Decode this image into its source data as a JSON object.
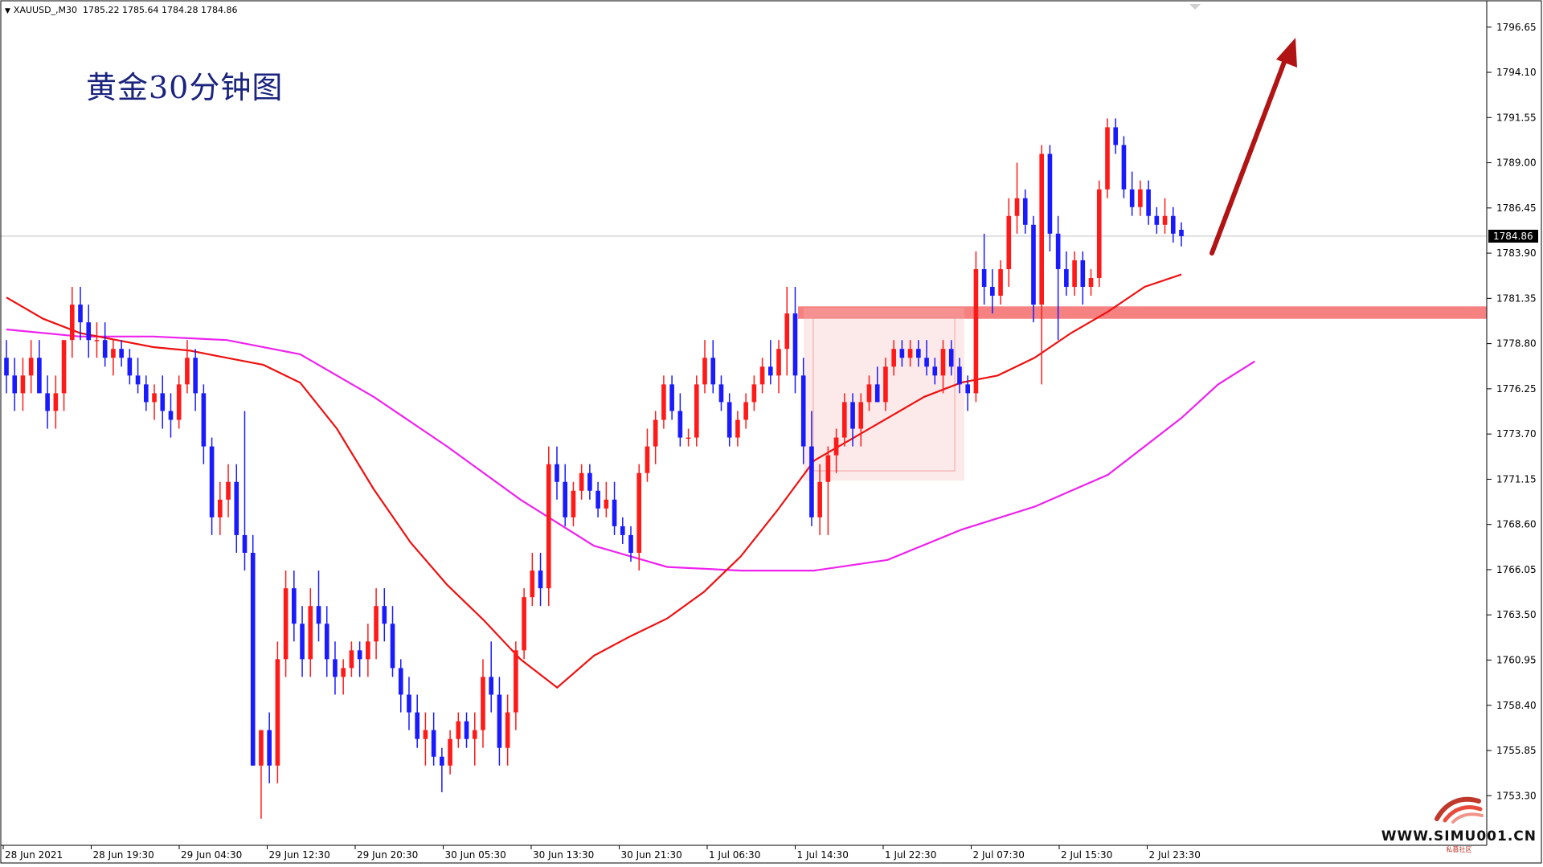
{
  "header": {
    "symbol_line": "XAUUSD_,M30  1785.22 1785.64 1784.28 1784.86"
  },
  "annotation_title": "黄金30分钟图",
  "brand": {
    "site": "WWW.SIMU001.CN",
    "sub": "私募社区"
  },
  "colors": {
    "bull": "#ff1a1a",
    "bear": "#1a1aff",
    "ma_fast": "#ee1111",
    "ma_slow": "#ee22ee",
    "zone": "#f36b6b",
    "arrow": "#b01414"
  },
  "chart_data": {
    "type": "candlestick",
    "symbol": "XAUUSD_",
    "timeframe": "M30",
    "last_price": "1784.86",
    "ylim": [
      1751.5,
      1797.5
    ],
    "y_ticks": [
      "1796.65",
      "1794.10",
      "1791.55",
      "1789.00",
      "1786.45",
      "1783.90",
      "1781.35",
      "1778.80",
      "1776.25",
      "1773.70",
      "1771.15",
      "1768.60",
      "1766.05",
      "1763.50",
      "1760.95",
      "1758.40",
      "1755.85",
      "1753.30"
    ],
    "x_labels": [
      "28 Jun 2021",
      "28 Jun 19:30",
      "29 Jun 04:30",
      "29 Jun 12:30",
      "29 Jun 20:30",
      "30 Jun 05:30",
      "30 Jun 13:30",
      "30 Jun 21:30",
      "1 Jul 06:30",
      "1 Jul 14:30",
      "1 Jul 22:30",
      "2 Jul 07:30",
      "2 Jul 15:30",
      "2 Jul 23:30"
    ],
    "resistance_zone": [
      1780.2,
      1780.9
    ],
    "candles": [
      [
        1778,
        1779,
        1776,
        1777
      ],
      [
        1777,
        1778,
        1775,
        1776
      ],
      [
        1776,
        1778,
        1775,
        1777
      ],
      [
        1777,
        1779,
        1776,
        1778
      ],
      [
        1778,
        1779,
        1776,
        1776
      ],
      [
        1776,
        1777,
        1774,
        1775
      ],
      [
        1775,
        1777,
        1774,
        1776
      ],
      [
        1776,
        1779,
        1775,
        1779
      ],
      [
        1779,
        1782,
        1778,
        1781
      ],
      [
        1781,
        1782,
        1779,
        1780
      ],
      [
        1780,
        1781,
        1778,
        1779
      ],
      [
        1779,
        1780,
        1778,
        1779
      ],
      [
        1779,
        1780,
        1777.5,
        1778
      ],
      [
        1778,
        1779,
        1777,
        1778.5
      ],
      [
        1778.5,
        1779,
        1777.5,
        1778
      ],
      [
        1778,
        1778.5,
        1776.5,
        1777
      ],
      [
        1777,
        1778,
        1776,
        1776.5
      ],
      [
        1776.5,
        1777,
        1775,
        1775.5
      ],
      [
        1775.5,
        1776.5,
        1774.5,
        1776
      ],
      [
        1776,
        1777,
        1774,
        1775
      ],
      [
        1775,
        1776,
        1773.5,
        1774.5
      ],
      [
        1774.5,
        1777,
        1774,
        1776.5
      ],
      [
        1776.5,
        1779,
        1776,
        1778
      ],
      [
        1778,
        1778.5,
        1775,
        1776
      ],
      [
        1776,
        1776.5,
        1772,
        1773
      ],
      [
        1773,
        1773.5,
        1768,
        1769
      ],
      [
        1769,
        1771,
        1768,
        1770
      ],
      [
        1770,
        1772,
        1769,
        1771
      ],
      [
        1771,
        1772,
        1767,
        1768
      ],
      [
        1768,
        1775,
        1766,
        1767
      ],
      [
        1767,
        1768,
        1755,
        1755
      ],
      [
        1755,
        1757,
        1752,
        1757
      ],
      [
        1757,
        1758,
        1754,
        1755
      ],
      [
        1755,
        1762,
        1754,
        1761
      ],
      [
        1761,
        1766,
        1760,
        1765
      ],
      [
        1765,
        1766,
        1762,
        1763
      ],
      [
        1763,
        1764,
        1760,
        1761
      ],
      [
        1761,
        1765,
        1760,
        1764
      ],
      [
        1764,
        1766,
        1762,
        1763
      ],
      [
        1763,
        1764,
        1760,
        1761
      ],
      [
        1761,
        1762,
        1759,
        1760
      ],
      [
        1760,
        1761,
        1759,
        1760.5
      ],
      [
        1760.5,
        1762,
        1760,
        1761.5
      ],
      [
        1761.5,
        1762,
        1760,
        1761
      ],
      [
        1761,
        1763,
        1760,
        1762
      ],
      [
        1762,
        1765,
        1761,
        1764
      ],
      [
        1764,
        1765,
        1762,
        1763
      ],
      [
        1763,
        1764,
        1760,
        1760.5
      ],
      [
        1760.5,
        1761,
        1758,
        1759
      ],
      [
        1759,
        1760,
        1757,
        1758
      ],
      [
        1758,
        1759,
        1756,
        1756.5
      ],
      [
        1756.5,
        1758,
        1755,
        1757
      ],
      [
        1757,
        1758,
        1755,
        1755.5
      ],
      [
        1755.5,
        1756,
        1753.5,
        1755
      ],
      [
        1755,
        1757,
        1754.5,
        1756.5
      ],
      [
        1756.5,
        1758,
        1756,
        1757.5
      ],
      [
        1757.5,
        1758,
        1756,
        1756.5
      ],
      [
        1756.5,
        1758,
        1755,
        1757
      ],
      [
        1757,
        1761,
        1756,
        1760
      ],
      [
        1760,
        1762,
        1758,
        1759
      ],
      [
        1759,
        1760,
        1755,
        1756
      ],
      [
        1756,
        1759,
        1755,
        1758
      ],
      [
        1758,
        1762,
        1757,
        1761.5
      ],
      [
        1761.5,
        1765,
        1761,
        1764.5
      ],
      [
        1764.5,
        1767,
        1764,
        1766
      ],
      [
        1766,
        1767,
        1764,
        1765
      ],
      [
        1765,
        1773,
        1764,
        1772
      ],
      [
        1772,
        1773,
        1770,
        1771
      ],
      [
        1771,
        1772,
        1768.5,
        1769
      ],
      [
        1769,
        1771,
        1768.5,
        1770.5
      ],
      [
        1770.5,
        1772,
        1770,
        1771.5
      ],
      [
        1771.5,
        1772,
        1770,
        1770.5
      ],
      [
        1770.5,
        1771,
        1769,
        1769.5
      ],
      [
        1769.5,
        1771,
        1769,
        1770
      ],
      [
        1770,
        1771,
        1768,
        1768.5
      ],
      [
        1768.5,
        1769,
        1767.5,
        1768
      ],
      [
        1768,
        1768.5,
        1766.5,
        1767
      ],
      [
        1767,
        1772,
        1766,
        1771.5
      ],
      [
        1771.5,
        1774,
        1771,
        1773
      ],
      [
        1773,
        1775,
        1772,
        1774.5
      ],
      [
        1774.5,
        1777,
        1774,
        1776.5
      ],
      [
        1776.5,
        1777,
        1774.5,
        1775
      ],
      [
        1775,
        1776,
        1773,
        1773.5
      ],
      [
        1773.5,
        1774,
        1773,
        1773.5
      ],
      [
        1773.5,
        1777,
        1773,
        1776.5
      ],
      [
        1776.5,
        1779,
        1776,
        1778
      ],
      [
        1778,
        1779,
        1776,
        1776.5
      ],
      [
        1776.5,
        1777,
        1775,
        1775.5
      ],
      [
        1775.5,
        1776,
        1773,
        1773.5
      ],
      [
        1773.5,
        1775,
        1773,
        1774.5
      ],
      [
        1774.5,
        1776,
        1774,
        1775.5
      ],
      [
        1775.5,
        1777,
        1775,
        1776.5
      ],
      [
        1776.5,
        1778,
        1776,
        1777.5
      ],
      [
        1777.5,
        1779,
        1776.5,
        1777
      ],
      [
        1777,
        1779,
        1776,
        1778.5
      ],
      [
        1778.5,
        1782,
        1777,
        1780.5
      ],
      [
        1780.5,
        1782,
        1776,
        1777
      ],
      [
        1777,
        1778,
        1772,
        1773
      ],
      [
        1773,
        1775,
        1768.5,
        1769
      ],
      [
        1769,
        1772,
        1768,
        1771
      ],
      [
        1771,
        1773,
        1768,
        1772.5
      ],
      [
        1772.5,
        1774,
        1771.5,
        1773.5
      ],
      [
        1773.5,
        1776,
        1773,
        1775.5
      ],
      [
        1775.5,
        1776,
        1773,
        1774
      ],
      [
        1774,
        1776,
        1773,
        1775.5
      ],
      [
        1775.5,
        1777,
        1775,
        1776.5
      ],
      [
        1776.5,
        1777.5,
        1775.5,
        1775.5
      ],
      [
        1775.5,
        1778,
        1775,
        1777.5
      ],
      [
        1777.5,
        1779,
        1777,
        1778.5
      ],
      [
        1778.5,
        1779,
        1777.5,
        1778
      ],
      [
        1778,
        1779,
        1777.5,
        1778.5
      ],
      [
        1778.5,
        1779,
        1777.5,
        1778
      ],
      [
        1778,
        1779,
        1777,
        1777.5
      ],
      [
        1777.5,
        1778,
        1776.5,
        1777
      ],
      [
        1777,
        1779,
        1776,
        1778.5
      ],
      [
        1778.5,
        1779,
        1777,
        1777.5
      ],
      [
        1777.5,
        1778,
        1776,
        1776.5
      ],
      [
        1776.5,
        1777,
        1775,
        1776
      ],
      [
        1776,
        1784,
        1775.5,
        1783
      ],
      [
        1783,
        1785,
        1781,
        1782
      ],
      [
        1782,
        1783,
        1780.5,
        1781.5
      ],
      [
        1781.5,
        1783.5,
        1781,
        1783
      ],
      [
        1783,
        1787,
        1782,
        1786
      ],
      [
        1786,
        1789,
        1785,
        1787
      ],
      [
        1787,
        1787.5,
        1785,
        1785.5
      ],
      [
        1785.5,
        1786,
        1780,
        1781
      ],
      [
        1781,
        1790,
        1776.5,
        1789.5
      ],
      [
        1789.5,
        1790,
        1784,
        1785
      ],
      [
        1785,
        1786,
        1779,
        1783
      ],
      [
        1783,
        1784,
        1781.5,
        1782
      ],
      [
        1782,
        1784,
        1781.5,
        1783.5
      ],
      [
        1783.5,
        1784,
        1781,
        1782
      ],
      [
        1782,
        1783,
        1781.5,
        1782.5
      ],
      [
        1782.5,
        1788,
        1782,
        1787.5
      ],
      [
        1787.5,
        1791.5,
        1787,
        1791
      ],
      [
        1791,
        1791.5,
        1789.5,
        1790
      ],
      [
        1790,
        1790.5,
        1787,
        1787.5
      ],
      [
        1787.5,
        1788.5,
        1786,
        1786.5
      ],
      [
        1786.5,
        1788,
        1786,
        1787.5
      ],
      [
        1787.5,
        1788,
        1785.5,
        1786
      ],
      [
        1786,
        1786.5,
        1785,
        1785.5
      ],
      [
        1785.5,
        1787,
        1785,
        1786
      ],
      [
        1786,
        1786.5,
        1784.5,
        1785
      ],
      [
        1785.22,
        1785.64,
        1784.28,
        1784.86
      ]
    ],
    "ma_fast": [
      [
        0,
        1781.4
      ],
      [
        40,
        1780.2
      ],
      [
        80,
        1779.4
      ],
      [
        120,
        1779.0
      ],
      [
        160,
        1778.6
      ],
      [
        200,
        1778.4
      ],
      [
        240,
        1778.0
      ],
      [
        280,
        1777.6
      ],
      [
        320,
        1776.6
      ],
      [
        360,
        1774.0
      ],
      [
        400,
        1770.6
      ],
      [
        440,
        1767.6
      ],
      [
        480,
        1765.2
      ],
      [
        520,
        1763.2
      ],
      [
        560,
        1761.0
      ],
      [
        600,
        1759.4
      ],
      [
        640,
        1761.2
      ],
      [
        680,
        1762.3
      ],
      [
        720,
        1763.3
      ],
      [
        760,
        1764.8
      ],
      [
        800,
        1766.8
      ],
      [
        840,
        1769.4
      ],
      [
        880,
        1772.2
      ],
      [
        920,
        1773.4
      ],
      [
        960,
        1774.6
      ],
      [
        1000,
        1775.8
      ],
      [
        1040,
        1776.6
      ],
      [
        1080,
        1777.0
      ],
      [
        1120,
        1778.0
      ],
      [
        1160,
        1779.4
      ],
      [
        1200,
        1780.6
      ],
      [
        1240,
        1782.0
      ],
      [
        1280,
        1782.7
      ]
    ],
    "ma_slow": [
      [
        0,
        1779.6
      ],
      [
        80,
        1779.2
      ],
      [
        160,
        1779.2
      ],
      [
        240,
        1779.0
      ],
      [
        320,
        1778.2
      ],
      [
        400,
        1775.8
      ],
      [
        480,
        1773.0
      ],
      [
        560,
        1770.0
      ],
      [
        640,
        1767.4
      ],
      [
        720,
        1766.2
      ],
      [
        800,
        1766.0
      ],
      [
        880,
        1766.0
      ],
      [
        960,
        1766.6
      ],
      [
        1040,
        1768.3
      ],
      [
        1120,
        1769.6
      ],
      [
        1200,
        1771.4
      ],
      [
        1280,
        1774.6
      ],
      [
        1320,
        1776.5
      ],
      [
        1360,
        1777.8
      ]
    ]
  }
}
